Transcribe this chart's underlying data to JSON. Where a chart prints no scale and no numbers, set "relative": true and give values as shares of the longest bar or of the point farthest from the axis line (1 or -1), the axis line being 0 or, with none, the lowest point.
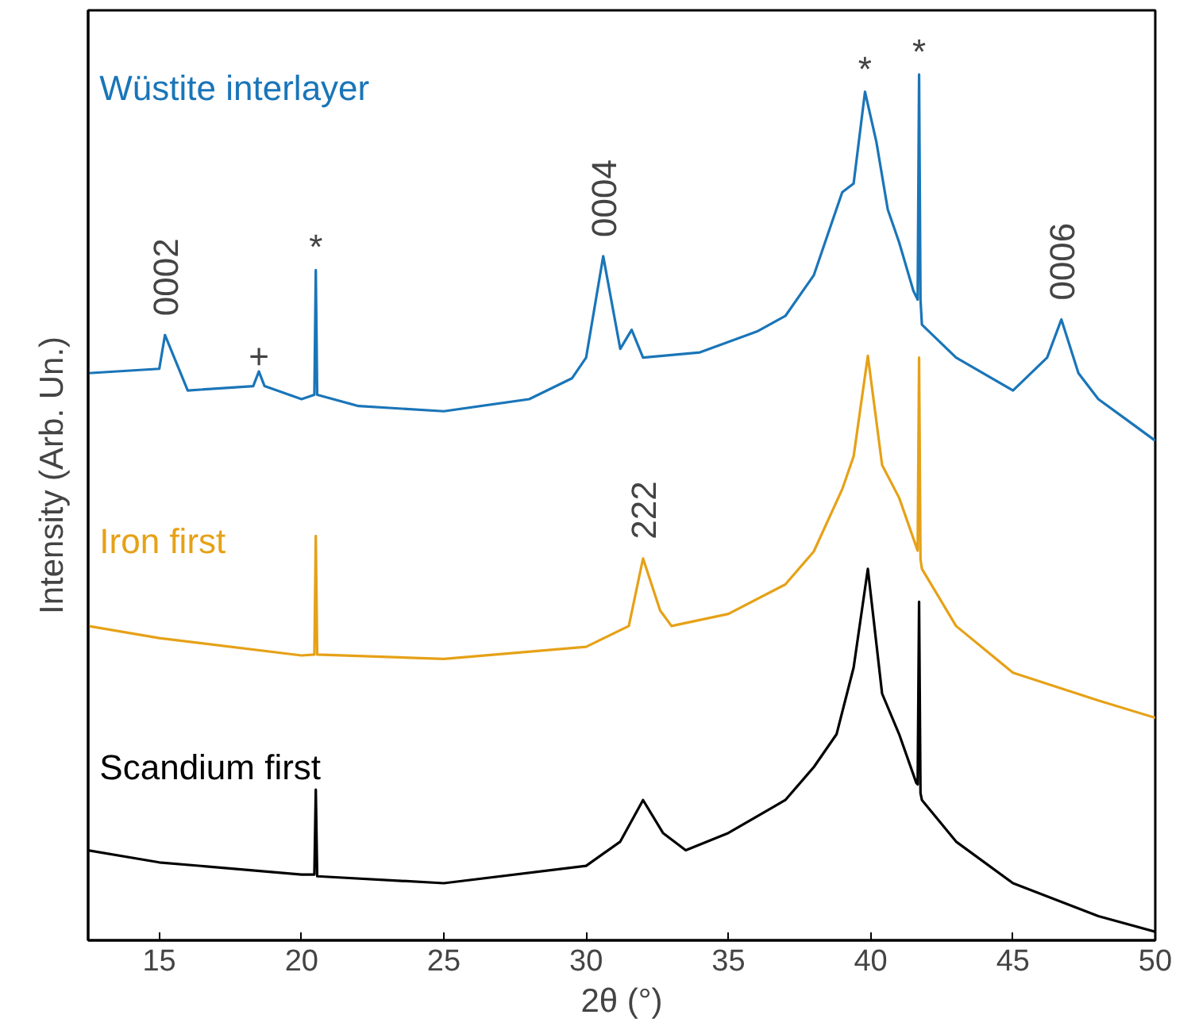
{
  "chart_data": {
    "type": "line",
    "relative": true,
    "xlabel": "2θ (°)",
    "ylabel": "Intensity (Arb. Un.)",
    "xlim": [
      12.5,
      50
    ],
    "xticks": [
      15,
      20,
      25,
      30,
      35,
      40,
      45,
      50
    ],
    "grid": false,
    "marker": "none",
    "line_style": "solid",
    "series": [
      {
        "name": "Wüstite interlayer",
        "color": "#1a75b8",
        "x": [
          12.5,
          15,
          15.2,
          16,
          18.3,
          18.5,
          18.7,
          20,
          20.45,
          20.5,
          20.55,
          22,
          25,
          28,
          29.5,
          30,
          30.6,
          31.2,
          31.6,
          32,
          34,
          36,
          37,
          38,
          38.5,
          39,
          39.4,
          39.8,
          40.2,
          40.6,
          41,
          41.5,
          41.65,
          41.7,
          41.75,
          41.8,
          43,
          45,
          46.2,
          46.7,
          47.3,
          48,
          49,
          50
        ],
        "values": [
          0.655,
          0.66,
          0.699,
          0.635,
          0.64,
          0.657,
          0.64,
          0.625,
          0.63,
          0.774,
          0.63,
          0.617,
          0.611,
          0.625,
          0.649,
          0.673,
          0.79,
          0.683,
          0.705,
          0.673,
          0.679,
          0.703,
          0.721,
          0.768,
          0.816,
          0.864,
          0.874,
          0.98,
          0.922,
          0.844,
          0.806,
          0.75,
          0.74,
          1.0,
          0.74,
          0.711,
          0.673,
          0.635,
          0.673,
          0.717,
          0.655,
          0.625,
          0.601,
          0.577
        ]
      },
      {
        "name": "Iron first",
        "color": "#e6a117",
        "x": [
          12.5,
          15,
          20,
          20.45,
          20.5,
          20.55,
          25,
          30,
          31.5,
          32,
          32.6,
          33,
          35,
          37,
          38,
          39,
          39.4,
          39.9,
          40.4,
          41,
          41.65,
          41.7,
          41.75,
          41.8,
          43,
          45,
          48,
          50
        ],
        "values": [
          0.363,
          0.349,
          0.329,
          0.33,
          0.467,
          0.33,
          0.325,
          0.339,
          0.363,
          0.441,
          0.381,
          0.363,
          0.377,
          0.411,
          0.449,
          0.521,
          0.559,
          0.675,
          0.549,
          0.511,
          0.45,
          0.673,
          0.44,
          0.429,
          0.363,
          0.309,
          0.277,
          0.257
        ]
      },
      {
        "name": "Scandium first",
        "color": "#000000",
        "x": [
          12.5,
          15,
          20,
          20.45,
          20.5,
          20.55,
          25,
          30,
          31.2,
          32,
          32.7,
          33.5,
          35,
          37,
          38,
          38.8,
          39.4,
          39.9,
          40.4,
          41,
          41.6,
          41.65,
          41.7,
          41.75,
          41.8,
          43,
          45,
          48,
          50
        ],
        "values": [
          0.104,
          0.09,
          0.076,
          0.076,
          0.174,
          0.074,
          0.066,
          0.086,
          0.114,
          0.162,
          0.124,
          0.104,
          0.124,
          0.162,
          0.2,
          0.238,
          0.315,
          0.429,
          0.285,
          0.238,
          0.182,
          0.18,
          0.391,
          0.17,
          0.162,
          0.114,
          0.066,
          0.028,
          0.01
        ]
      }
    ],
    "annotations": [
      {
        "text": "0002",
        "x": 15.2,
        "y": 0.699
      },
      {
        "text": "+",
        "x": 18.5,
        "y": 0.657
      },
      {
        "text": "*",
        "x": 20.5,
        "y": 0.774
      },
      {
        "text": "0004",
        "x": 30.6,
        "y": 0.79
      },
      {
        "text": "222",
        "x": 32,
        "y": 0.441
      },
      {
        "text": "*",
        "x": 39.8,
        "y": 0.98
      },
      {
        "text": "*",
        "x": 41.7,
        "y": 1.0
      },
      {
        "text": "0006",
        "x": 46.7,
        "y": 0.717
      }
    ]
  }
}
